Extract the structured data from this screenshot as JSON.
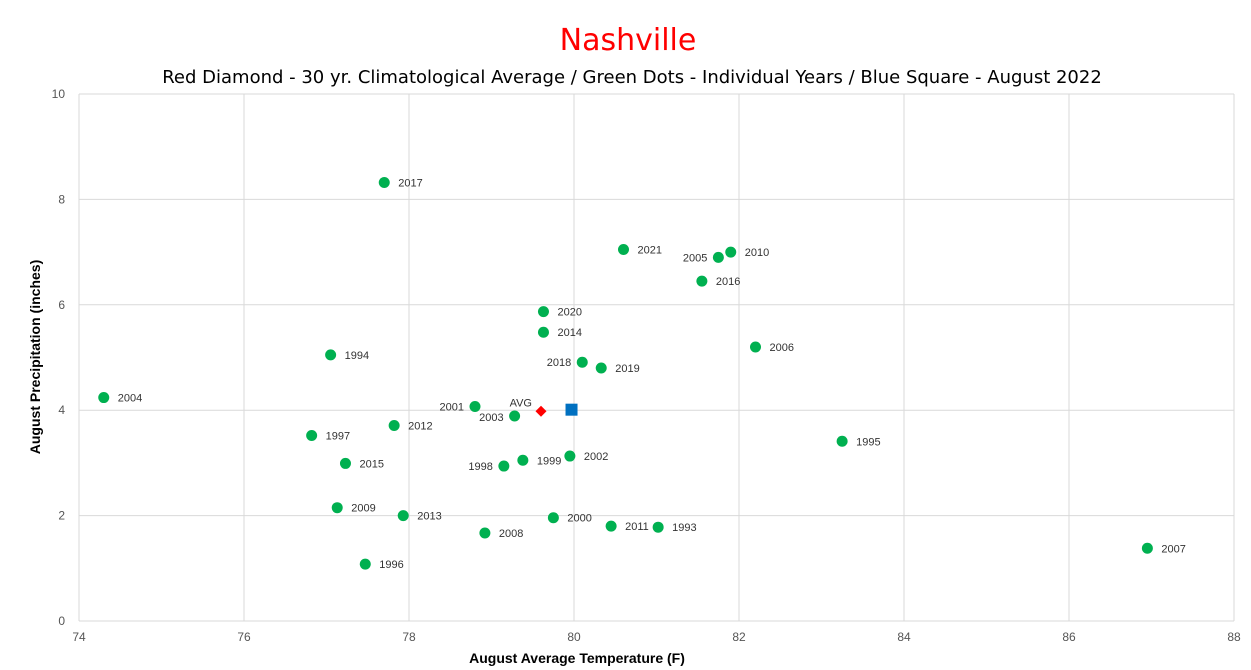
{
  "chart_data": {
    "type": "scatter",
    "title": "Nashville",
    "subtitle": "Red Diamond - 30 yr. Climatological Average / Green Dots - Individual Years / Blue Square - August 2022",
    "xlabel": "August Average Temperature (F)",
    "ylabel": "August Precipitation (inches)",
    "xlim": [
      74,
      88
    ],
    "ylim": [
      0,
      10
    ],
    "xticks": [
      74,
      76,
      78,
      80,
      82,
      84,
      86,
      88
    ],
    "yticks": [
      0,
      2,
      4,
      6,
      8,
      10
    ],
    "grid": true,
    "colors": {
      "title": "#ff0000",
      "years": "#00b050",
      "average": "#ff0000",
      "current": "#0070c0",
      "grid": "#d9d9d9"
    },
    "series": [
      {
        "name": "Individual Years",
        "marker": "circle",
        "points": [
          {
            "label": "2017",
            "x": 77.7,
            "y": 8.32
          },
          {
            "label": "2021",
            "x": 80.6,
            "y": 7.05
          },
          {
            "label": "2005",
            "x": 81.75,
            "y": 6.9
          },
          {
            "label": "2010",
            "x": 81.9,
            "y": 7.0
          },
          {
            "label": "2016",
            "x": 81.55,
            "y": 6.45
          },
          {
            "label": "2020",
            "x": 79.63,
            "y": 5.87
          },
          {
            "label": "2014",
            "x": 79.63,
            "y": 5.48
          },
          {
            "label": "2006",
            "x": 82.2,
            "y": 5.2
          },
          {
            "label": "1994",
            "x": 77.05,
            "y": 5.05
          },
          {
            "label": "2018",
            "x": 80.1,
            "y": 4.91
          },
          {
            "label": "2019",
            "x": 80.33,
            "y": 4.8
          },
          {
            "label": "2004",
            "x": 74.3,
            "y": 4.24
          },
          {
            "label": "2001",
            "x": 78.8,
            "y": 4.07
          },
          {
            "label": "2003",
            "x": 79.28,
            "y": 3.89
          },
          {
            "label": "2012",
            "x": 77.82,
            "y": 3.71
          },
          {
            "label": "1997",
            "x": 76.82,
            "y": 3.52
          },
          {
            "label": "1995",
            "x": 83.25,
            "y": 3.41
          },
          {
            "label": "2002",
            "x": 79.95,
            "y": 3.13
          },
          {
            "label": "1999",
            "x": 79.38,
            "y": 3.05
          },
          {
            "label": "1998",
            "x": 79.15,
            "y": 2.94
          },
          {
            "label": "2015",
            "x": 77.23,
            "y": 2.99
          },
          {
            "label": "2009",
            "x": 77.13,
            "y": 2.15
          },
          {
            "label": "2013",
            "x": 77.93,
            "y": 2.0
          },
          {
            "label": "2000",
            "x": 79.75,
            "y": 1.96
          },
          {
            "label": "2011",
            "x": 80.45,
            "y": 1.8
          },
          {
            "label": "1993",
            "x": 81.02,
            "y": 1.78
          },
          {
            "label": "2008",
            "x": 78.92,
            "y": 1.67
          },
          {
            "label": "1996",
            "x": 77.47,
            "y": 1.08
          },
          {
            "label": "2007",
            "x": 86.95,
            "y": 1.38
          }
        ]
      },
      {
        "name": "30 yr. Climatological Average",
        "marker": "diamond",
        "points": [
          {
            "label": "AVG",
            "x": 79.6,
            "y": 3.98
          }
        ]
      },
      {
        "name": "August 2022",
        "marker": "square",
        "points": [
          {
            "label": "",
            "x": 79.97,
            "y": 4.01
          }
        ]
      }
    ]
  }
}
